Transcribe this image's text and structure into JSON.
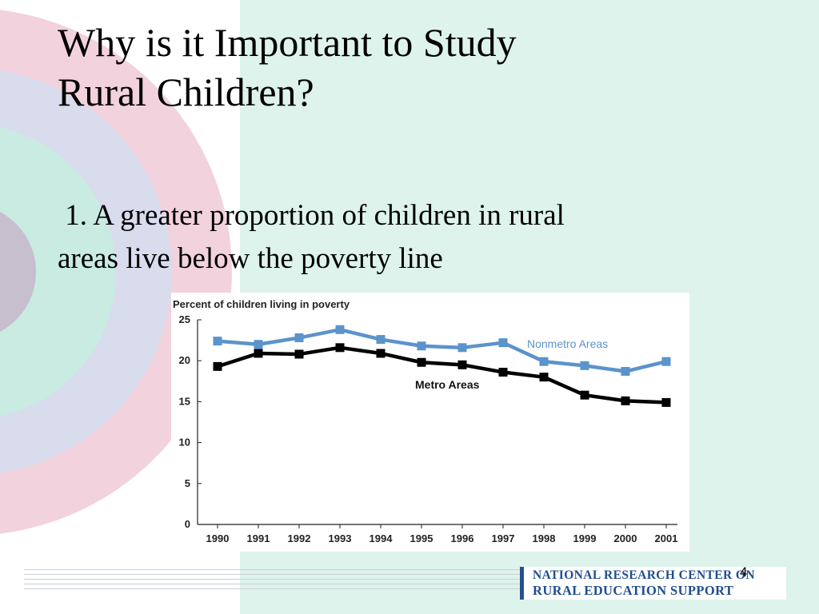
{
  "slide": {
    "title_line1": "Why is it Important to Study",
    "title_line2": "Rural Children?",
    "bullet_line1": " 1. A greater proportion of children in rural",
    "bullet_line2": "areas live below the poverty line",
    "page_number": "4"
  },
  "logo": {
    "line1": "NATIONAL RESEARCH CENTER ON",
    "line2": "RURAL EDUCATION SUPPORT",
    "color": "#1f4d8f"
  },
  "colors": {
    "background_right": "#ddf3ec",
    "nonmetro": "#5b93cb",
    "metro": "#000000"
  },
  "chart_data": {
    "type": "line",
    "title": "Percent of children living in poverty",
    "categories": [
      "1990",
      "1991",
      "1992",
      "1993",
      "1994",
      "1995",
      "1996",
      "1997",
      "1998",
      "1999",
      "2000",
      "2001"
    ],
    "series": [
      {
        "name": "Nonmetro Areas",
        "values": [
          22.4,
          22.0,
          22.8,
          23.8,
          22.6,
          21.8,
          21.6,
          22.2,
          19.9,
          19.4,
          18.7,
          19.9
        ]
      },
      {
        "name": "Metro Areas",
        "values": [
          19.3,
          20.9,
          20.8,
          21.6,
          20.9,
          19.8,
          19.5,
          18.6,
          18.0,
          15.8,
          15.1,
          14.9
        ]
      }
    ],
    "yticks": [
      "0",
      "5",
      "10",
      "15",
      "20",
      "25"
    ],
    "ylim": [
      0,
      25
    ],
    "grid": false
  }
}
